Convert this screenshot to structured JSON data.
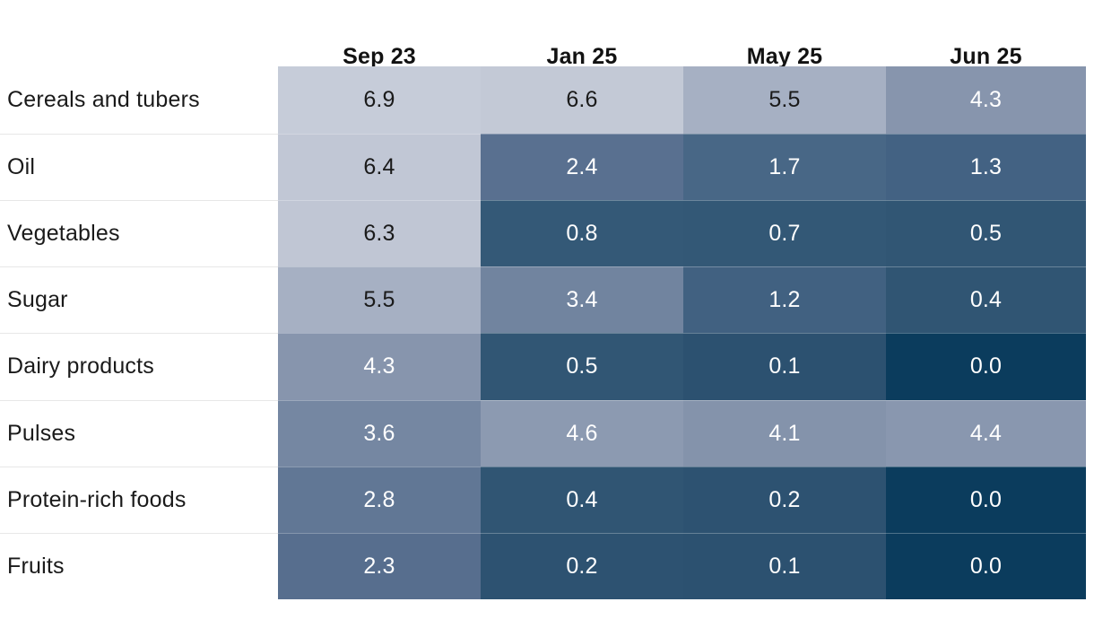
{
  "chart_data": {
    "type": "heatmap",
    "title": "",
    "columns": [
      "Sep 23",
      "Jan 25",
      "May 25",
      "Jun 25"
    ],
    "rows": [
      {
        "label": "Cereals and tubers",
        "values": [
          6.9,
          6.6,
          5.5,
          4.3
        ]
      },
      {
        "label": "Oil",
        "values": [
          6.4,
          2.4,
          1.7,
          1.3
        ]
      },
      {
        "label": "Vegetables",
        "values": [
          6.3,
          0.8,
          0.7,
          0.5
        ]
      },
      {
        "label": "Sugar",
        "values": [
          5.5,
          3.4,
          1.2,
          0.4
        ]
      },
      {
        "label": "Dairy products",
        "values": [
          4.3,
          0.5,
          0.1,
          0.0
        ]
      },
      {
        "label": "Pulses",
        "values": [
          3.6,
          4.6,
          4.1,
          4.4
        ]
      },
      {
        "label": "Protein-rich foods",
        "values": [
          2.8,
          0.4,
          0.2,
          0.0
        ]
      },
      {
        "label": "Fruits",
        "values": [
          2.3,
          0.2,
          0.1,
          0.0
        ]
      }
    ],
    "cell_colors": [
      [
        "#c6ccd9",
        "#c3c9d6",
        "#a6b0c3",
        "#8795ad"
      ],
      [
        "#c1c7d5",
        "#597090",
        "#486786",
        "#436283"
      ],
      [
        "#c0c6d4",
        "#345977",
        "#335876",
        "#315674"
      ],
      [
        "#a6b0c3",
        "#71849f",
        "#416181",
        "#305573"
      ],
      [
        "#8795ad",
        "#315674",
        "#2c5170",
        "#0b3c5d"
      ],
      [
        "#7587a2",
        "#8c9ab1",
        "#8493ab",
        "#8997af"
      ],
      [
        "#617795",
        "#305573",
        "#2d5271",
        "#0b3c5d"
      ],
      [
        "#576e8e",
        "#2d5271",
        "#2c5170",
        "#0b3c5d"
      ]
    ],
    "value_decimals": 1,
    "color_scale": {
      "dark_low": "#0b3c5d",
      "light_high": "#c6ccd9",
      "meaning": "darker = lower value"
    },
    "text_dark_color": "#1a1a1a",
    "text_light_color": "#ffffff",
    "dark_text_min_value": 5.0,
    "legend_position": "none",
    "grid": "horizontal row separators only"
  }
}
